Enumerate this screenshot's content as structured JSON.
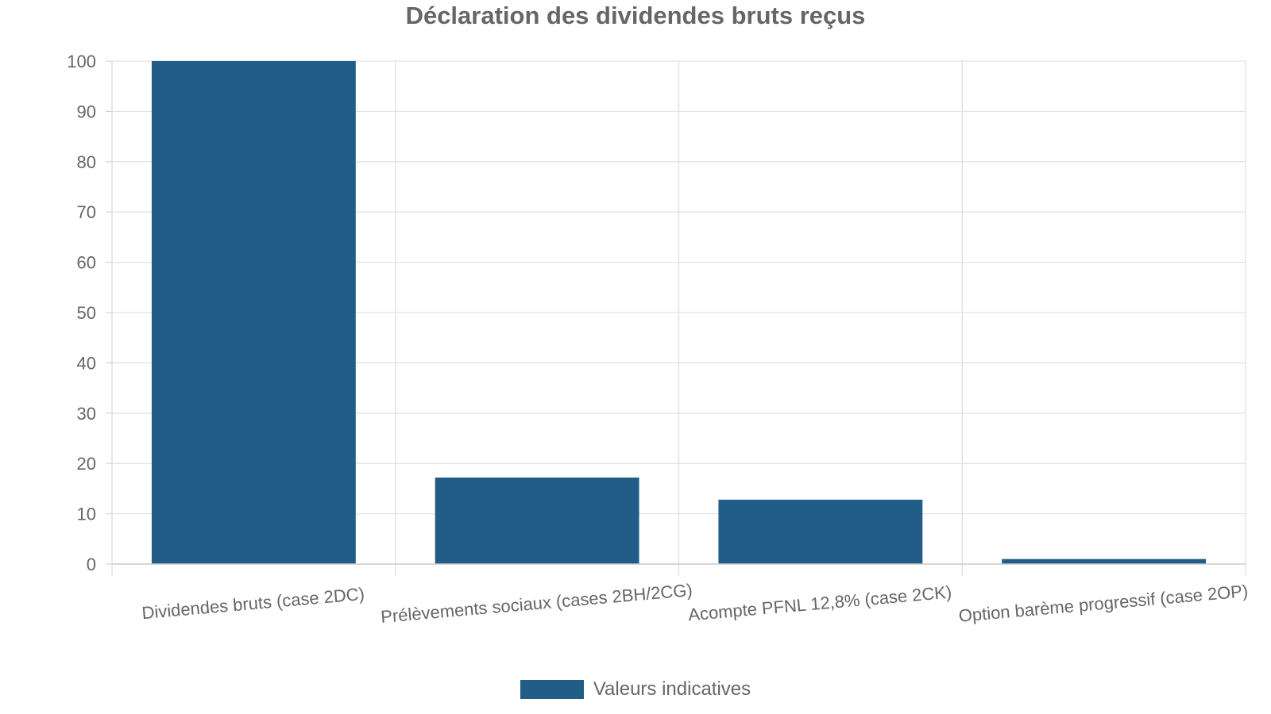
{
  "chart_data": {
    "type": "bar",
    "title": "Déclaration des dividendes bruts reçus",
    "xlabel": "",
    "ylabel": "",
    "categories": [
      "Dividendes bruts (case 2DC)",
      "Prélèvements sociaux (cases 2BH/2CG)",
      "Acompte PFNL 12,8% (case 2CK)",
      "Option barème progressif (case 2OP)"
    ],
    "series": [
      {
        "name": "Valeurs indicatives",
        "values": [
          100,
          17.2,
          12.8,
          1
        ],
        "color": "#215d87"
      }
    ],
    "ylim": [
      0,
      100
    ],
    "yticks": [
      0,
      10,
      20,
      30,
      40,
      50,
      60,
      70,
      80,
      90,
      100
    ],
    "grid": true,
    "legend_position": "bottom"
  }
}
